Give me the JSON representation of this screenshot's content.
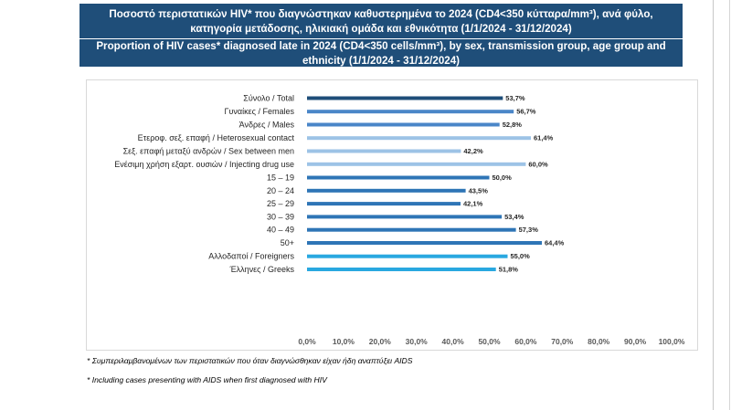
{
  "header": {
    "title_gr": "Ποσοστό περιστατικών HIV* που διαγνώστηκαν καθυστερημένα το 2024 (CD4<350 κύτταρα/mm³), ανά φύλο, κατηγορία μετάδοσης, ηλικιακή ομάδα και εθνικότητα (1/1/2024 - 31/12/2024)",
    "title_en": "Proportion of HIV cases* diagnosed late in 2024 (CD4<350 cells/mm³), by sex, transmission group, age group and ethnicity (1/1/2024 - 31/12/2024)"
  },
  "colors": {
    "header_bg": "#1f4e79",
    "total": "#1f4e79",
    "sex": "#4a86c8",
    "transmission": "#9dc3e6",
    "age": "#2e75b6",
    "ethnicity": "#29a8e0"
  },
  "chart_data": {
    "type": "bar",
    "orientation": "horizontal",
    "title": "Proportion of HIV cases diagnosed late in 2024 (CD4<350 cells/mm³)",
    "xlim": [
      0,
      100
    ],
    "xticks": [
      "0,0%",
      "10,0%",
      "20,0%",
      "30,0%",
      "40,0%",
      "50,0%",
      "60,0%",
      "70,0%",
      "80,0%",
      "90,0%",
      "100,0%"
    ],
    "groups": [
      {
        "name": "total",
        "color_key": "total",
        "bars": [
          {
            "label": "Σύνολο / Total",
            "value": 53.7,
            "display": "53,7%"
          }
        ]
      },
      {
        "name": "sex",
        "color_key": "sex",
        "bars": [
          {
            "label": "Γυναίκες / Females",
            "value": 56.7,
            "display": "56,7%"
          },
          {
            "label": "Άνδρες / Males",
            "value": 52.8,
            "display": "52,8%"
          }
        ]
      },
      {
        "name": "transmission",
        "color_key": "transmission",
        "bars": [
          {
            "label": "Ετεροφ. σεξ. επαφή / Heterosexual contact",
            "value": 61.4,
            "display": "61,4%"
          },
          {
            "label": "Σεξ. επαφή μεταξύ ανδρών / Sex between men",
            "value": 42.2,
            "display": "42,2%"
          },
          {
            "label": "Ενέσιμη χρήση εξαρτ. ουσιών / Injecting drug use",
            "value": 60.0,
            "display": "60,0%"
          }
        ]
      },
      {
        "name": "age",
        "color_key": "age",
        "bars": [
          {
            "label": "15 – 19",
            "value": 50.0,
            "display": "50,0%"
          },
          {
            "label": "20 – 24",
            "value": 43.5,
            "display": "43,5%"
          },
          {
            "label": "25 – 29",
            "value": 42.1,
            "display": "42,1%"
          },
          {
            "label": "30 – 39",
            "value": 53.4,
            "display": "53,4%"
          },
          {
            "label": "40 – 49",
            "value": 57.3,
            "display": "57,3%"
          },
          {
            "label": "50+",
            "value": 64.4,
            "display": "64,4%"
          }
        ]
      },
      {
        "name": "ethnicity",
        "color_key": "ethnicity",
        "bars": [
          {
            "label": "Αλλοδαποί / Foreigners",
            "value": 55.0,
            "display": "55,0%"
          },
          {
            "label": "Έλληνες / Greeks",
            "value": 51.8,
            "display": "51,8%"
          }
        ]
      }
    ]
  },
  "footnotes": {
    "gr": "* Συμπεριλαμβανομένων των περιστατικών που όταν διαγνώσθηκαν είχαν ήδη αναπτύξει AIDS",
    "en": "* Including cases presenting with AIDS when first diagnosed with HIV"
  }
}
